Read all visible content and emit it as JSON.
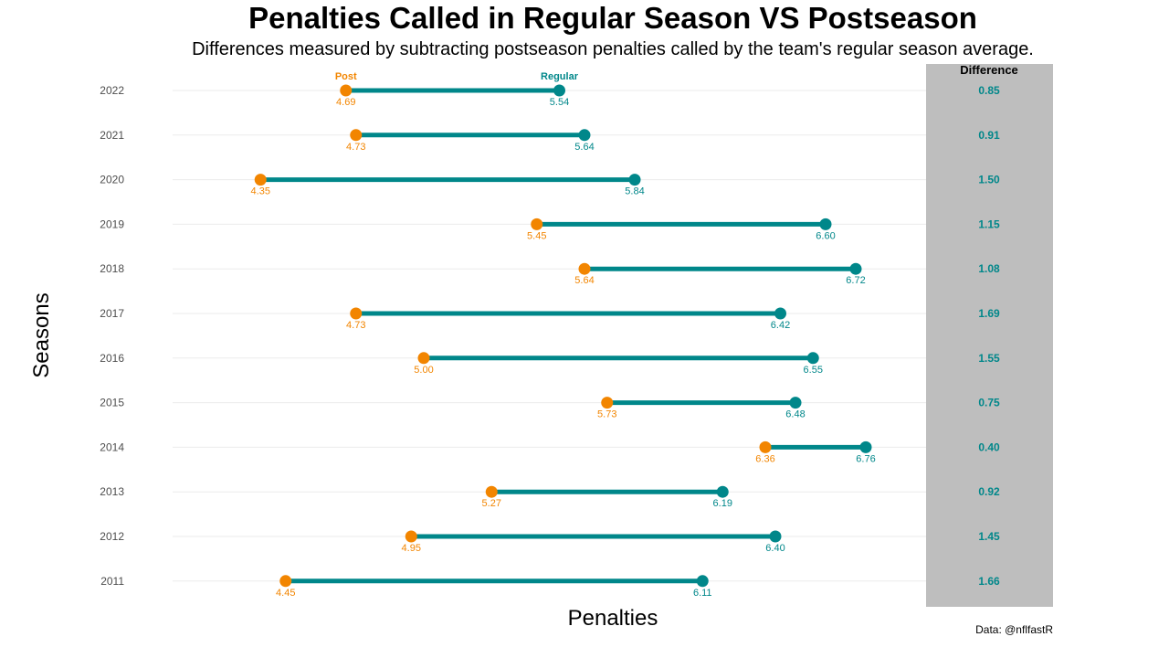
{
  "chart_data": {
    "type": "dumbbell",
    "title": "Penalties Called in Regular Season VS Postseason",
    "subtitle": "Differences measured by subtracting postseason penalties called by the team's regular season average.",
    "xlabel": "Penalties",
    "ylabel": "Seasons",
    "caption": "Data: @nflfastR",
    "difference_header": "Difference",
    "legend": {
      "post": "Post",
      "regular": "Regular"
    },
    "colors": {
      "post": "#f28500",
      "regular": "#00878a",
      "difference_panel": "#bebebe",
      "grid": "#ebebeb"
    },
    "xlim": [
      4.0,
      7.0
    ],
    "seasons": [
      {
        "season": "2022",
        "post": "4.69",
        "regular": "5.54",
        "difference": "0.85"
      },
      {
        "season": "2021",
        "post": "4.73",
        "regular": "5.64",
        "difference": "0.91"
      },
      {
        "season": "2020",
        "post": "4.35",
        "regular": "5.84",
        "difference": "1.50"
      },
      {
        "season": "2019",
        "post": "5.45",
        "regular": "6.60",
        "difference": "1.15"
      },
      {
        "season": "2018",
        "post": "5.64",
        "regular": "6.72",
        "difference": "1.08"
      },
      {
        "season": "2017",
        "post": "4.73",
        "regular": "6.42",
        "difference": "1.69"
      },
      {
        "season": "2016",
        "post": "5.00",
        "regular": "6.55",
        "difference": "1.55"
      },
      {
        "season": "2015",
        "post": "5.73",
        "regular": "6.48",
        "difference": "0.75"
      },
      {
        "season": "2014",
        "post": "6.36",
        "regular": "6.76",
        "difference": "0.40"
      },
      {
        "season": "2013",
        "post": "5.27",
        "regular": "6.19",
        "difference": "0.92"
      },
      {
        "season": "2012",
        "post": "4.95",
        "regular": "6.40",
        "difference": "1.45"
      },
      {
        "season": "2011",
        "post": "4.45",
        "regular": "6.11",
        "difference": "1.66"
      }
    ]
  }
}
